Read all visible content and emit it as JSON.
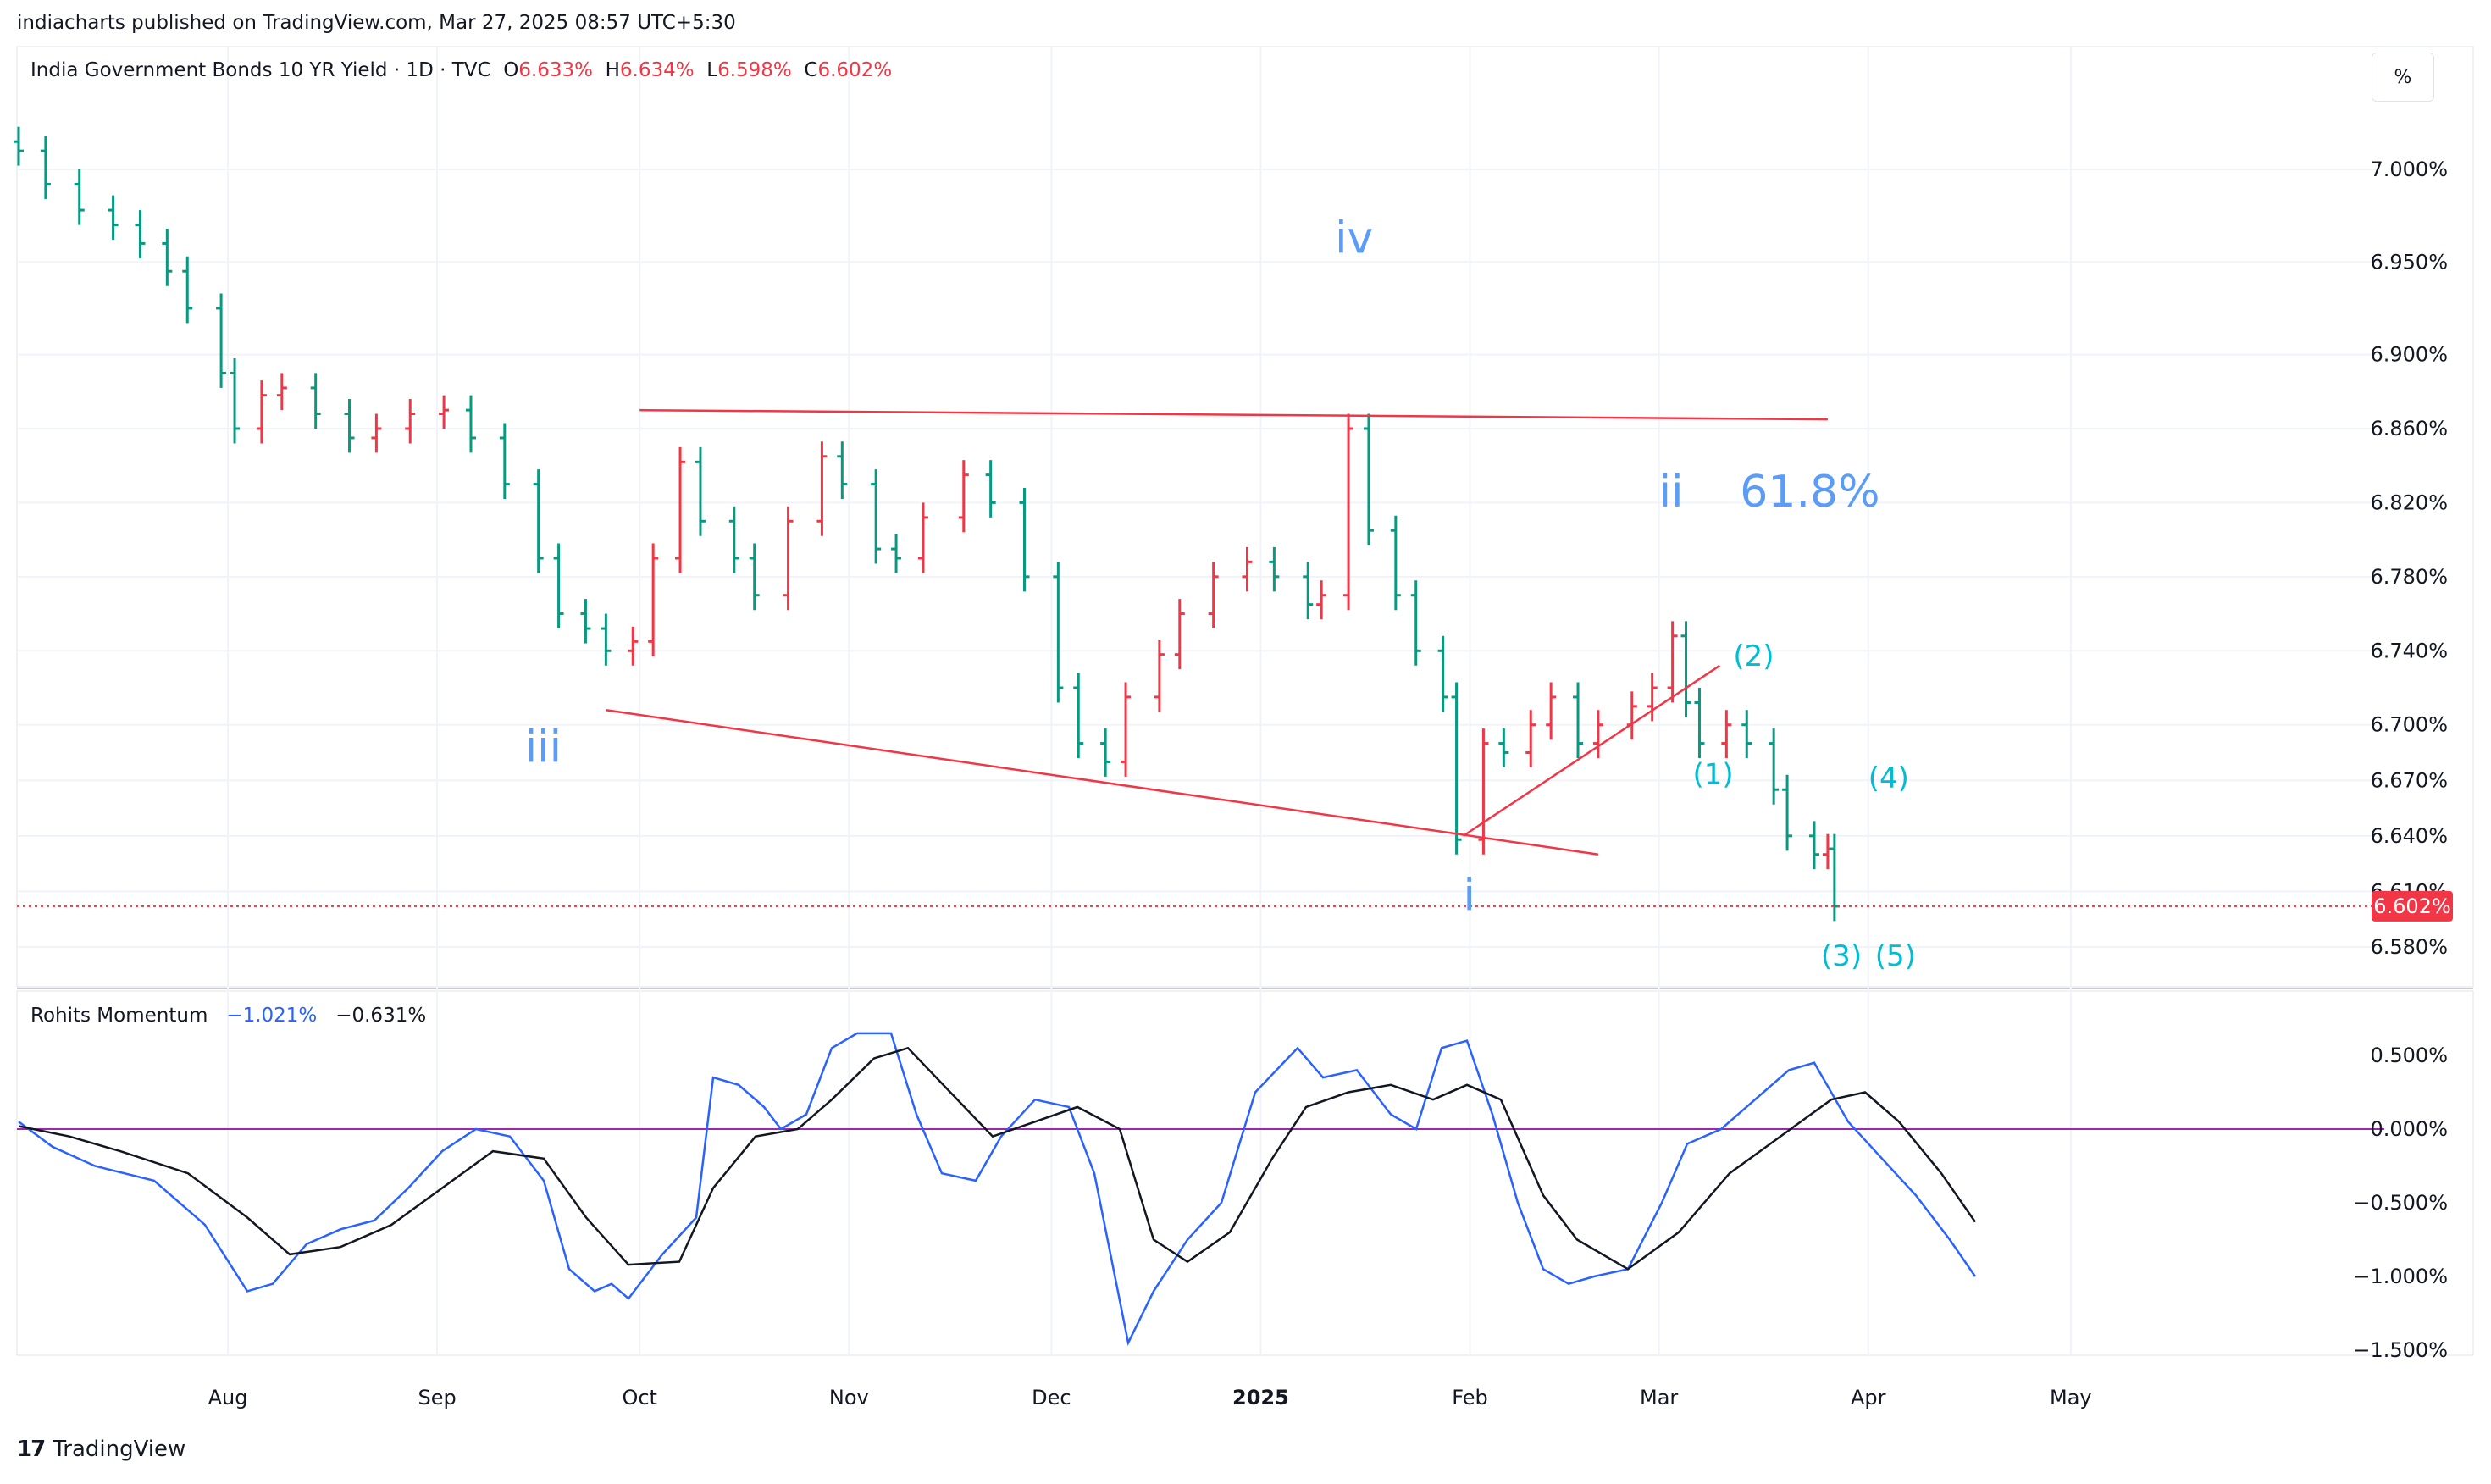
{
  "header": {
    "published_line": "indiacharts published on TradingView.com, Mar 27, 2025 08:57 UTC+5:30"
  },
  "legend": {
    "symbol": "India Government Bonds 10 YR Yield · 1D · TVC",
    "open_label": "O",
    "open": "6.633%",
    "high_label": "H",
    "high": "6.634%",
    "low_label": "L",
    "low": "6.598%",
    "close_label": "C",
    "close": "6.602%"
  },
  "unit_button": "%",
  "price_axis_labels": [
    "7.000%",
    "6.950%",
    "6.900%",
    "6.860%",
    "6.820%",
    "6.780%",
    "6.740%",
    "6.700%",
    "6.670%",
    "6.640%",
    "6.610%",
    "6.580%"
  ],
  "current_price_tag": "6.602%",
  "time_axis_labels": [
    "Aug",
    "Sep",
    "Oct",
    "Nov",
    "Dec",
    "2025",
    "Feb",
    "Mar",
    "Apr",
    "May"
  ],
  "wave_labels": {
    "iv": "iv",
    "iii": "iii",
    "ii": "ii",
    "i": "i",
    "fib": "61.8%",
    "w1": "(1)",
    "w2": "(2)",
    "w3": "(3)",
    "w4": "(4)",
    "w5": "(5)"
  },
  "indicator": {
    "name": "Rohits Momentum",
    "value1": "−1.021%",
    "value2": "−0.631%",
    "axis_labels": [
      "0.500%",
      "0.000%",
      "−0.500%",
      "−1.000%",
      "−1.500%"
    ]
  },
  "footer": {
    "brand": "TradingView"
  },
  "colors": {
    "up": "#089981",
    "down": "#f23645",
    "trendline": "#f23645",
    "wave_blue": "#5b9cf6",
    "wave_teal": "#00bcd4",
    "momentum_fast": "#2962ff",
    "momentum_slow": "#131722",
    "zero_line": "#9c27b0"
  },
  "chart_data": [
    {
      "type": "ohlc",
      "title": "India Government Bonds 10 YR Yield · 1D · TVC",
      "y_unit": "%",
      "ylim": [
        6.555,
        7.08
      ],
      "x_range": [
        "2025-06-30",
        "2025-05-31"
      ],
      "close_series": [
        [
          "2024-07-01",
          7.01
        ],
        [
          "2024-07-05",
          6.992
        ],
        [
          "2024-07-10",
          6.978
        ],
        [
          "2024-07-15",
          6.97
        ],
        [
          "2024-07-19",
          6.96
        ],
        [
          "2024-07-23",
          6.945
        ],
        [
          "2024-07-26",
          6.925
        ],
        [
          "2024-07-31",
          6.89
        ],
        [
          "2024-08-02",
          6.86
        ],
        [
          "2024-08-06",
          6.878
        ],
        [
          "2024-08-09",
          6.882
        ],
        [
          "2024-08-14",
          6.868
        ],
        [
          "2024-08-19",
          6.855
        ],
        [
          "2024-08-23",
          6.86
        ],
        [
          "2024-08-28",
          6.868
        ],
        [
          "2024-09-02",
          6.87
        ],
        [
          "2024-09-06",
          6.855
        ],
        [
          "2024-09-11",
          6.83
        ],
        [
          "2024-09-16",
          6.79
        ],
        [
          "2024-09-19",
          6.76
        ],
        [
          "2024-09-23",
          6.752
        ],
        [
          "2024-09-26",
          6.74
        ],
        [
          "2024-09-30",
          6.745
        ],
        [
          "2024-10-03",
          6.79
        ],
        [
          "2024-10-07",
          6.842
        ],
        [
          "2024-10-10",
          6.81
        ],
        [
          "2024-10-15",
          6.79
        ],
        [
          "2024-10-18",
          6.77
        ],
        [
          "2024-10-23",
          6.81
        ],
        [
          "2024-10-28",
          6.845
        ],
        [
          "2024-10-31",
          6.83
        ],
        [
          "2024-11-05",
          6.795
        ],
        [
          "2024-11-08",
          6.79
        ],
        [
          "2024-11-12",
          6.812
        ],
        [
          "2024-11-18",
          6.835
        ],
        [
          "2024-11-22",
          6.82
        ],
        [
          "2024-11-27",
          6.78
        ],
        [
          "2024-12-02",
          6.72
        ],
        [
          "2024-12-05",
          6.69
        ],
        [
          "2024-12-09",
          6.68
        ],
        [
          "2024-12-12",
          6.715
        ],
        [
          "2024-12-17",
          6.738
        ],
        [
          "2024-12-20",
          6.76
        ],
        [
          "2024-12-25",
          6.78
        ],
        [
          "2024-12-30",
          6.788
        ],
        [
          "2025-01-03",
          6.78
        ],
        [
          "2025-01-08",
          6.765
        ],
        [
          "2025-01-10",
          6.77
        ],
        [
          "2025-01-14",
          6.86
        ],
        [
          "2025-01-17",
          6.805
        ],
        [
          "2025-01-21",
          6.77
        ],
        [
          "2025-01-24",
          6.74
        ],
        [
          "2025-01-28",
          6.715
        ],
        [
          "2025-01-30",
          6.638
        ],
        [
          "2025-02-03",
          6.69
        ],
        [
          "2025-02-06",
          6.685
        ],
        [
          "2025-02-10",
          6.7
        ],
        [
          "2025-02-13",
          6.715
        ],
        [
          "2025-02-17",
          6.69
        ],
        [
          "2025-02-20",
          6.7
        ],
        [
          "2025-02-25",
          6.71
        ],
        [
          "2025-02-28",
          6.72
        ],
        [
          "2025-03-03",
          6.748
        ],
        [
          "2025-03-05",
          6.712
        ],
        [
          "2025-03-07",
          6.69
        ],
        [
          "2025-03-11",
          6.7
        ],
        [
          "2025-03-14",
          6.69
        ],
        [
          "2025-03-18",
          6.665
        ],
        [
          "2025-03-20",
          6.64
        ],
        [
          "2025-03-24",
          6.63
        ],
        [
          "2025-03-26",
          6.633
        ],
        [
          "2025-03-27",
          6.602
        ]
      ],
      "last": {
        "open": 6.633,
        "high": 6.634,
        "low": 6.598,
        "close": 6.602
      },
      "trendlines": [
        {
          "from": [
            "2024-10-01",
            6.87
          ],
          "to": [
            "2025-03-26",
            6.865
          ]
        },
        {
          "from": [
            "2024-09-26",
            6.708
          ],
          "to": [
            "2025-02-20",
            6.63
          ]
        },
        {
          "from": [
            "2025-01-31",
            6.64
          ],
          "to": [
            "2025-03-10",
            6.732
          ]
        }
      ]
    },
    {
      "type": "line",
      "title": "Rohits Momentum",
      "y_unit": "%",
      "ylim": [
        -1.6,
        0.65
      ],
      "series": [
        {
          "name": "fast",
          "values": [
            [
              0,
              0.05
            ],
            [
              40,
              -0.12
            ],
            [
              90,
              -0.25
            ],
            [
              160,
              -0.35
            ],
            [
              220,
              -0.65
            ],
            [
              270,
              -1.1
            ],
            [
              300,
              -1.05
            ],
            [
              340,
              -0.78
            ],
            [
              380,
              -0.68
            ],
            [
              420,
              -0.62
            ],
            [
              460,
              -0.4
            ],
            [
              500,
              -0.15
            ],
            [
              540,
              0.0
            ],
            [
              580,
              -0.05
            ],
            [
              620,
              -0.35
            ],
            [
              650,
              -0.95
            ],
            [
              680,
              -1.1
            ],
            [
              700,
              -1.05
            ],
            [
              720,
              -1.15
            ],
            [
              760,
              -0.85
            ],
            [
              800,
              -0.6
            ],
            [
              820,
              0.35
            ],
            [
              850,
              0.3
            ],
            [
              880,
              0.15
            ],
            [
              900,
              0.0
            ],
            [
              930,
              0.1
            ],
            [
              960,
              0.55
            ],
            [
              990,
              0.65
            ],
            [
              1030,
              0.65
            ],
            [
              1060,
              0.1
            ],
            [
              1090,
              -0.3
            ],
            [
              1130,
              -0.35
            ],
            [
              1160,
              -0.05
            ],
            [
              1200,
              0.2
            ],
            [
              1240,
              0.15
            ],
            [
              1270,
              -0.3
            ],
            [
              1310,
              -1.45
            ],
            [
              1340,
              -1.1
            ],
            [
              1380,
              -0.75
            ],
            [
              1420,
              -0.5
            ],
            [
              1460,
              0.25
            ],
            [
              1510,
              0.55
            ],
            [
              1540,
              0.35
            ],
            [
              1580,
              0.4
            ],
            [
              1620,
              0.1
            ],
            [
              1650,
              0.0
            ],
            [
              1680,
              0.55
            ],
            [
              1710,
              0.6
            ],
            [
              1740,
              0.1
            ],
            [
              1770,
              -0.5
            ],
            [
              1800,
              -0.95
            ],
            [
              1830,
              -1.05
            ],
            [
              1860,
              -1.0
            ],
            [
              1900,
              -0.95
            ],
            [
              1940,
              -0.5
            ],
            [
              1970,
              -0.1
            ],
            [
              2010,
              0.0
            ],
            [
              2050,
              0.2
            ],
            [
              2090,
              0.4
            ],
            [
              2120,
              0.45
            ],
            [
              2160,
              0.05
            ],
            [
              2200,
              -0.2
            ],
            [
              2240,
              -0.45
            ],
            [
              2280,
              -0.75
            ],
            [
              2310,
              -1.0
            ]
          ]
        },
        {
          "name": "slow",
          "values": [
            [
              0,
              0.02
            ],
            [
              60,
              -0.05
            ],
            [
              120,
              -0.15
            ],
            [
              200,
              -0.3
            ],
            [
              270,
              -0.6
            ],
            [
              320,
              -0.85
            ],
            [
              380,
              -0.8
            ],
            [
              440,
              -0.65
            ],
            [
              500,
              -0.4
            ],
            [
              560,
              -0.15
            ],
            [
              620,
              -0.2
            ],
            [
              670,
              -0.6
            ],
            [
              720,
              -0.92
            ],
            [
              780,
              -0.9
            ],
            [
              820,
              -0.4
            ],
            [
              870,
              -0.05
            ],
            [
              920,
              0.0
            ],
            [
              960,
              0.2
            ],
            [
              1010,
              0.48
            ],
            [
              1050,
              0.55
            ],
            [
              1100,
              0.25
            ],
            [
              1150,
              -0.05
            ],
            [
              1200,
              0.05
            ],
            [
              1250,
              0.15
            ],
            [
              1300,
              0.0
            ],
            [
              1340,
              -0.75
            ],
            [
              1380,
              -0.9
            ],
            [
              1430,
              -0.7
            ],
            [
              1480,
              -0.2
            ],
            [
              1520,
              0.15
            ],
            [
              1570,
              0.25
            ],
            [
              1620,
              0.3
            ],
            [
              1670,
              0.2
            ],
            [
              1710,
              0.3
            ],
            [
              1750,
              0.2
            ],
            [
              1800,
              -0.45
            ],
            [
              1840,
              -0.75
            ],
            [
              1900,
              -0.95
            ],
            [
              1960,
              -0.7
            ],
            [
              2020,
              -0.3
            ],
            [
              2080,
              -0.05
            ],
            [
              2140,
              0.2
            ],
            [
              2180,
              0.25
            ],
            [
              2220,
              0.05
            ],
            [
              2270,
              -0.3
            ],
            [
              2310,
              -0.63
            ]
          ]
        }
      ],
      "zero_line": 0.0
    }
  ]
}
